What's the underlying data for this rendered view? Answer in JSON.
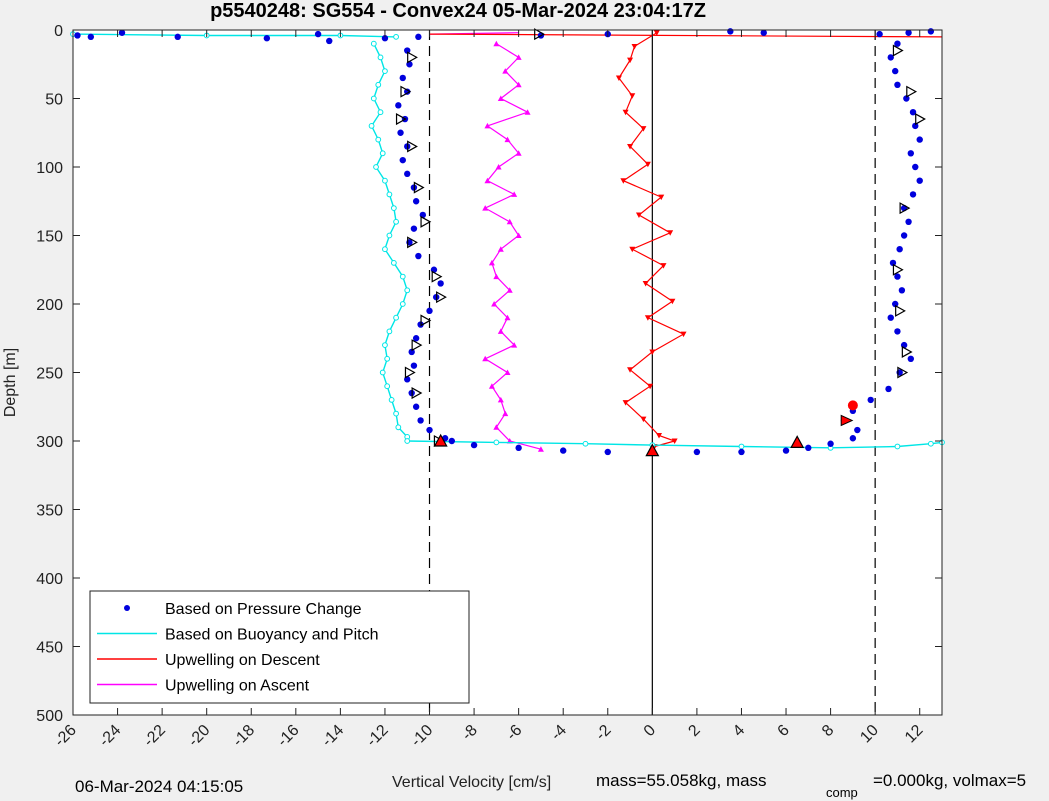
{
  "title": "p5540248: SG554 - Convex24 05-Mar-2024 23:04:17Z",
  "footer": {
    "timestamp": "06-Mar-2024 04:15:05",
    "xlabel": "Vertical Velocity [cm/s]",
    "mass_text": "mass=55.058kg, mass",
    "comp_sub": "comp",
    "comp_text": "=0.000kg, volmax=5"
  },
  "colors": {
    "pressure": "#0000dd",
    "buoyancy": "#00e6e6",
    "descent": "#ff0000",
    "ascent": "#ff00ff",
    "background": "#f0f0f0",
    "plot_area": "#ffffff"
  },
  "chart_data": {
    "type": "scatter",
    "xlabel": "Vertical Velocity [cm/s]",
    "ylabel": "Depth [m]",
    "xlim": [
      -26,
      13
    ],
    "ylim": [
      0,
      500
    ],
    "y_reversed": true,
    "xticks": [
      -26,
      -24,
      -22,
      -20,
      -18,
      -16,
      -14,
      -12,
      -10,
      -8,
      -6,
      -4,
      -2,
      0,
      2,
      4,
      6,
      8,
      10,
      12
    ],
    "yticks": [
      0,
      50,
      100,
      150,
      200,
      250,
      300,
      350,
      400,
      450,
      500
    ],
    "xtick_labels": [
      "-26",
      "-24",
      "-22",
      "-20",
      "-18",
      "-16",
      "-14",
      "-12",
      "-10",
      "-8",
      "-6",
      "-4",
      "-2",
      "0",
      "2",
      "4",
      "6",
      "8",
      "10",
      "12"
    ],
    "ytick_labels": [
      "0",
      "50",
      "100",
      "150",
      "200",
      "250",
      "300",
      "350",
      "400",
      "450",
      "500"
    ],
    "grid": false,
    "reference_lines": {
      "dashed_x": [
        -10,
        10
      ],
      "solid_x": [
        0
      ]
    },
    "legend": {
      "placement": "bottom-left",
      "entries": [
        {
          "label": "Based on Pressure Change",
          "series": "pressure"
        },
        {
          "label": "Based on Buoyancy and Pitch",
          "series": "buoyancy"
        },
        {
          "label": "Upwelling on Descent",
          "series": "descent"
        },
        {
          "label": "Upwelling on Ascent",
          "series": "ascent"
        }
      ]
    },
    "series": [
      {
        "name": "Based on Pressure Change",
        "key": "pressure",
        "dive": [
          [
            -10.5,
            5
          ],
          [
            -11.0,
            15
          ],
          [
            -10.9,
            25
          ],
          [
            -11.2,
            35
          ],
          [
            -11.0,
            45
          ],
          [
            -11.4,
            55
          ],
          [
            -11.1,
            65
          ],
          [
            -11.3,
            75
          ],
          [
            -11.0,
            85
          ],
          [
            -11.2,
            95
          ],
          [
            -11.0,
            105
          ],
          [
            -10.7,
            115
          ],
          [
            -10.6,
            125
          ],
          [
            -10.3,
            135
          ],
          [
            -10.7,
            145
          ],
          [
            -10.9,
            155
          ],
          [
            -10.5,
            165
          ],
          [
            -9.8,
            175
          ],
          [
            -9.5,
            185
          ],
          [
            -9.7,
            195
          ],
          [
            -10.0,
            205
          ],
          [
            -10.4,
            215
          ],
          [
            -10.6,
            225
          ],
          [
            -10.8,
            235
          ],
          [
            -10.7,
            245
          ],
          [
            -11.0,
            255
          ],
          [
            -10.8,
            265
          ],
          [
            -10.6,
            275
          ],
          [
            -10.4,
            285
          ],
          [
            -10.0,
            292
          ],
          [
            -9.3,
            298
          ]
        ],
        "climb": [
          [
            8.6,
            285
          ],
          [
            9.0,
            278
          ],
          [
            9.8,
            270
          ],
          [
            10.6,
            262
          ],
          [
            11.1,
            250
          ],
          [
            11.6,
            240
          ],
          [
            11.3,
            230
          ],
          [
            11.0,
            220
          ],
          [
            10.7,
            210
          ],
          [
            10.9,
            200
          ],
          [
            11.2,
            190
          ],
          [
            11.0,
            180
          ],
          [
            10.8,
            170
          ],
          [
            11.1,
            160
          ],
          [
            11.3,
            150
          ],
          [
            11.5,
            140
          ],
          [
            11.3,
            130
          ],
          [
            11.7,
            120
          ],
          [
            12.0,
            110
          ],
          [
            11.8,
            100
          ],
          [
            11.6,
            90
          ],
          [
            12.0,
            80
          ],
          [
            11.8,
            70
          ],
          [
            11.7,
            60
          ],
          [
            11.4,
            50
          ],
          [
            11.0,
            40
          ],
          [
            10.9,
            30
          ],
          [
            10.7,
            20
          ],
          [
            11.0,
            10
          ]
        ],
        "surface_dive": [
          [
            -25.8,
            4
          ],
          [
            -25.2,
            5
          ],
          [
            -23.8,
            2
          ],
          [
            -21.3,
            5
          ],
          [
            -17.3,
            6
          ],
          [
            -15.0,
            3
          ],
          [
            -14.5,
            8
          ],
          [
            -12.0,
            6
          ],
          [
            -5.0,
            4
          ],
          [
            -2.0,
            3
          ],
          [
            3.5,
            1
          ],
          [
            5.0,
            2
          ],
          [
            10.2,
            3
          ],
          [
            11.5,
            2
          ],
          [
            12.5,
            1
          ]
        ],
        "bottom_turn": [
          [
            -9.0,
            300
          ],
          [
            -8.0,
            303
          ],
          [
            -6.0,
            305
          ],
          [
            -4.0,
            307
          ],
          [
            -2.0,
            308
          ],
          [
            0.0,
            308
          ],
          [
            2.0,
            308
          ],
          [
            4.0,
            308
          ],
          [
            6.0,
            307
          ],
          [
            7.0,
            305
          ],
          [
            8.0,
            302
          ],
          [
            9.0,
            298
          ],
          [
            9.2,
            292
          ]
        ]
      },
      {
        "name": "Based on Buoyancy and Pitch",
        "key": "buoyancy",
        "dive": [
          [
            -12.5,
            10
          ],
          [
            -12.2,
            20
          ],
          [
            -12.0,
            30
          ],
          [
            -12.3,
            40
          ],
          [
            -12.5,
            50
          ],
          [
            -12.2,
            60
          ],
          [
            -12.6,
            70
          ],
          [
            -12.3,
            80
          ],
          [
            -12.1,
            90
          ],
          [
            -12.4,
            100
          ],
          [
            -12.0,
            110
          ],
          [
            -11.8,
            120
          ],
          [
            -11.6,
            130
          ],
          [
            -11.5,
            140
          ],
          [
            -11.8,
            150
          ],
          [
            -12.0,
            160
          ],
          [
            -11.6,
            170
          ],
          [
            -11.2,
            180
          ],
          [
            -11.0,
            190
          ],
          [
            -11.2,
            200
          ],
          [
            -11.5,
            210
          ],
          [
            -11.8,
            220
          ],
          [
            -12.0,
            230
          ],
          [
            -11.9,
            240
          ],
          [
            -12.1,
            250
          ],
          [
            -11.9,
            260
          ],
          [
            -11.7,
            270
          ],
          [
            -11.5,
            280
          ],
          [
            -11.4,
            290
          ],
          [
            -11.0,
            297
          ]
        ],
        "surface": [
          [
            -26.0,
            3
          ],
          [
            -20.0,
            4
          ],
          [
            -14.0,
            4
          ],
          [
            -11.5,
            5
          ]
        ],
        "bottom": [
          [
            -11.0,
            300
          ],
          [
            -7.0,
            301
          ],
          [
            -3.0,
            302
          ],
          [
            0.0,
            303
          ],
          [
            4.0,
            304
          ],
          [
            8.0,
            305
          ],
          [
            11.0,
            304
          ],
          [
            12.5,
            302
          ],
          [
            13.0,
            301
          ]
        ]
      },
      {
        "name": "Upwelling on Descent",
        "key": "descent",
        "values": [
          [
            0.2,
            2
          ],
          [
            -0.8,
            12
          ],
          [
            -1.0,
            22
          ],
          [
            -1.5,
            35
          ],
          [
            -0.9,
            48
          ],
          [
            -1.2,
            60
          ],
          [
            -0.4,
            72
          ],
          [
            -1.0,
            85
          ],
          [
            -0.2,
            98
          ],
          [
            -1.3,
            110
          ],
          [
            0.4,
            122
          ],
          [
            -0.6,
            135
          ],
          [
            0.8,
            148
          ],
          [
            -0.9,
            160
          ],
          [
            0.5,
            172
          ],
          [
            -0.3,
            185
          ],
          [
            0.9,
            198
          ],
          [
            -0.2,
            210
          ],
          [
            1.4,
            222
          ],
          [
            0.0,
            235
          ],
          [
            -1.0,
            248
          ],
          [
            -0.1,
            260
          ],
          [
            -1.2,
            272
          ],
          [
            -0.4,
            284
          ],
          [
            0.3,
            296
          ],
          [
            1.0,
            300
          ],
          [
            0.1,
            304
          ]
        ],
        "surface_line": [
          [
            -10.0,
            3
          ],
          [
            13.0,
            5
          ]
        ]
      },
      {
        "name": "Upwelling on Ascent",
        "key": "ascent",
        "values": [
          [
            -7.0,
            10
          ],
          [
            -6.0,
            20
          ],
          [
            -6.6,
            30
          ],
          [
            -6.0,
            40
          ],
          [
            -6.8,
            50
          ],
          [
            -5.6,
            60
          ],
          [
            -7.4,
            70
          ],
          [
            -6.5,
            80
          ],
          [
            -6.0,
            90
          ],
          [
            -6.9,
            100
          ],
          [
            -7.4,
            110
          ],
          [
            -6.2,
            120
          ],
          [
            -7.5,
            130
          ],
          [
            -6.4,
            140
          ],
          [
            -6.0,
            150
          ],
          [
            -6.8,
            160
          ],
          [
            -7.2,
            170
          ],
          [
            -7.0,
            180
          ],
          [
            -6.4,
            190
          ],
          [
            -7.1,
            200
          ],
          [
            -6.5,
            210
          ],
          [
            -6.8,
            220
          ],
          [
            -6.2,
            230
          ],
          [
            -7.5,
            240
          ],
          [
            -6.5,
            250
          ],
          [
            -7.2,
            260
          ],
          [
            -6.8,
            270
          ],
          [
            -6.6,
            280
          ],
          [
            -7.0,
            290
          ],
          [
            -6.4,
            300
          ],
          [
            -5.0,
            306
          ]
        ],
        "surface_line": [
          [
            -10.0,
            3
          ],
          [
            -6.0,
            2
          ]
        ]
      }
    ],
    "markers": {
      "black_triangles": [
        [
          -5.1,
          3
        ],
        [
          -10.8,
          20
        ],
        [
          -11.1,
          45
        ],
        [
          -11.3,
          65
        ],
        [
          -10.8,
          85
        ],
        [
          -10.5,
          115
        ],
        [
          -10.2,
          140
        ],
        [
          -10.8,
          155
        ],
        [
          -9.7,
          180
        ],
        [
          -9.5,
          195
        ],
        [
          -10.2,
          212
        ],
        [
          -10.6,
          230
        ],
        [
          -10.9,
          250
        ],
        [
          -10.6,
          265
        ],
        [
          -9.6,
          300
        ],
        [
          11.0,
          15
        ],
        [
          11.6,
          45
        ],
        [
          12.0,
          65
        ],
        [
          11.3,
          130
        ],
        [
          11.0,
          175
        ],
        [
          11.1,
          205
        ],
        [
          11.4,
          235
        ],
        [
          11.2,
          250
        ]
      ],
      "red_triangles": [
        [
          -9.5,
          300
        ],
        [
          0.0,
          307
        ],
        [
          6.5,
          301
        ]
      ],
      "red_circles": [
        [
          9.0,
          274
        ]
      ],
      "red_arrows": [
        [
          8.7,
          285
        ]
      ]
    }
  }
}
